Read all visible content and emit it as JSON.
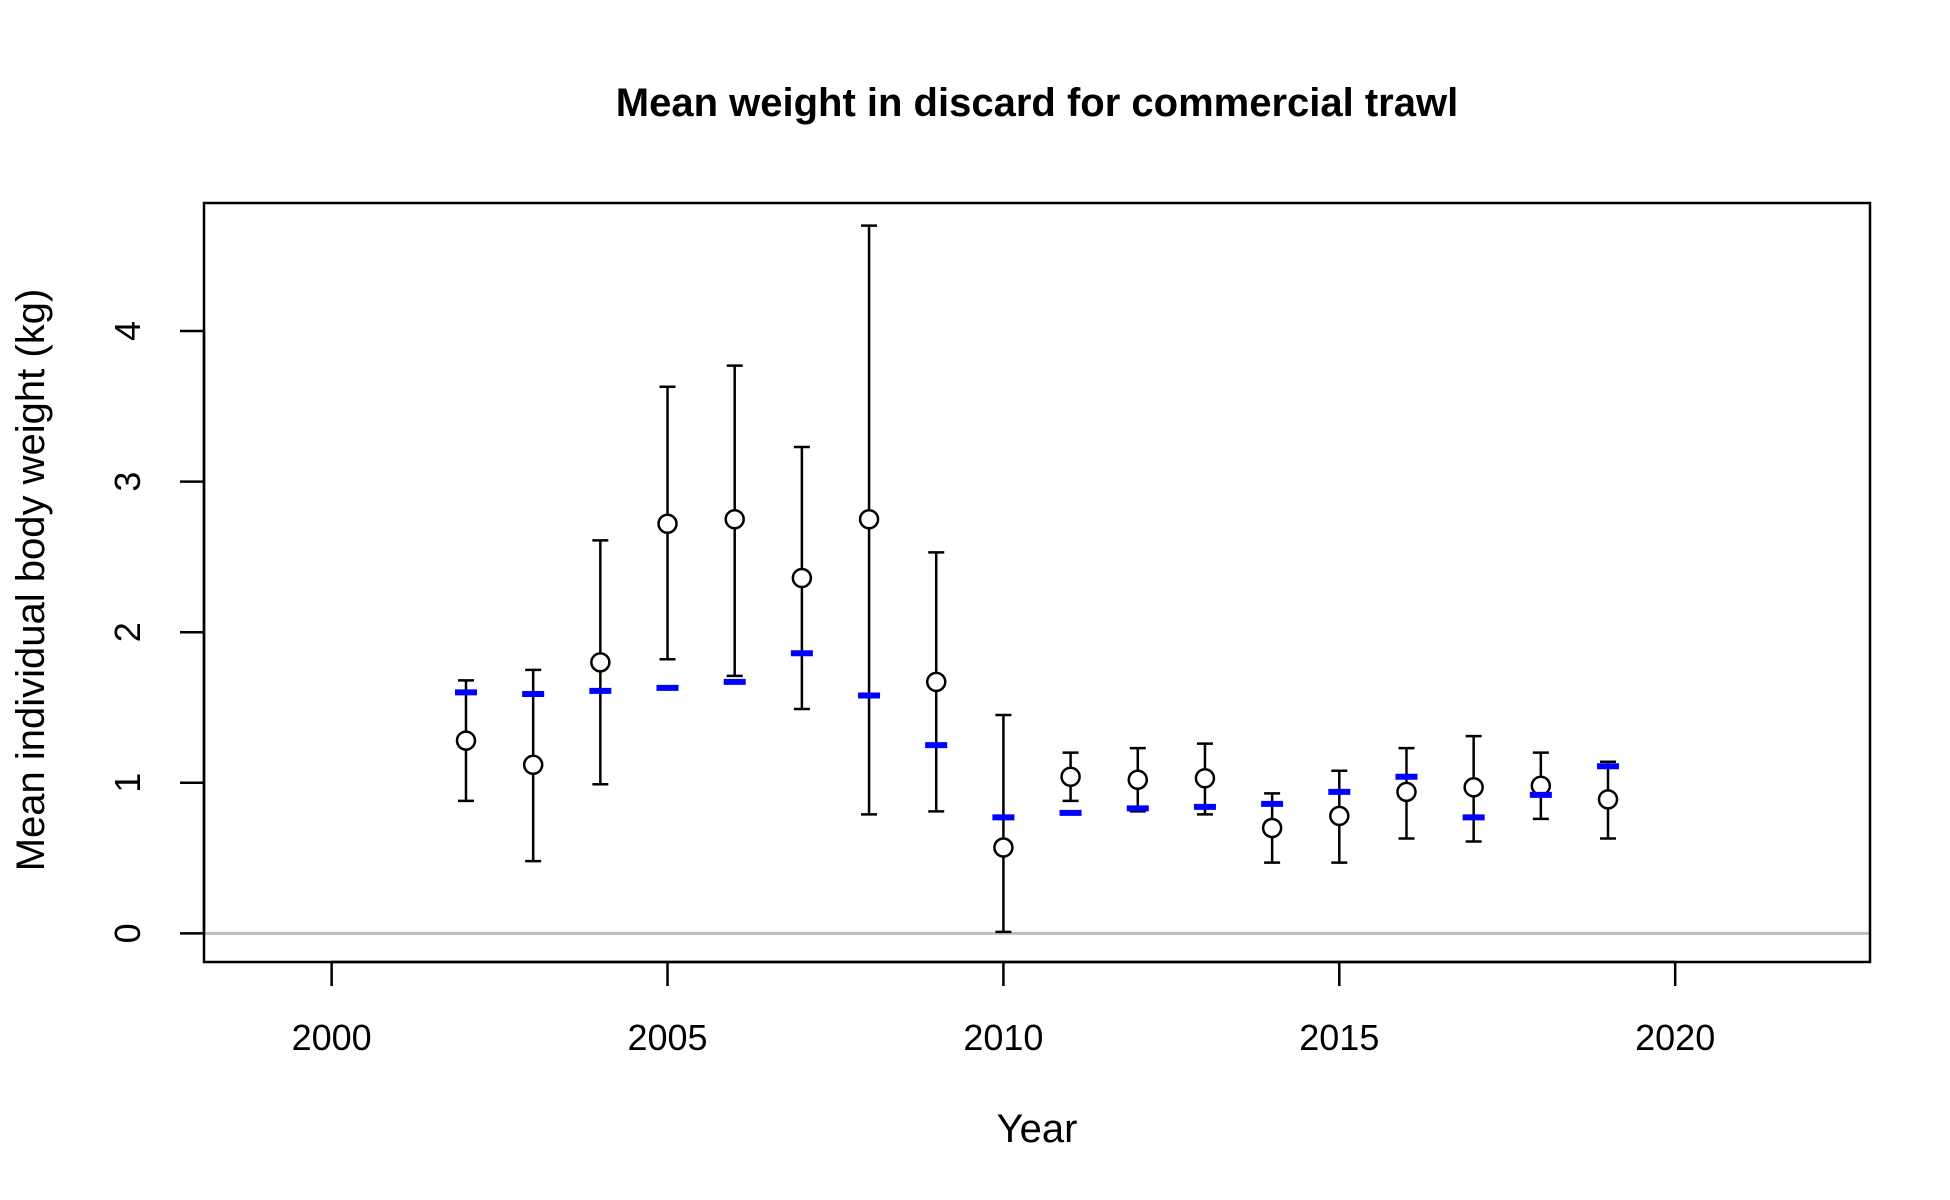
{
  "chart_data": {
    "type": "scatter",
    "title": "Mean weight in discard for commercial trawl",
    "xlabel": "Year",
    "ylabel": "Mean individual body weight (kg)",
    "xlim": [
      1998.1,
      2022.9
    ],
    "ylim": [
      -0.19,
      4.85
    ],
    "xticks": [
      "2000",
      "2005",
      "2010",
      "2015",
      "2020"
    ],
    "yticks": [
      "0",
      "1",
      "2",
      "3",
      "4"
    ],
    "reference_line_y": 0,
    "reference_line_color": "#bebebe",
    "series": [
      {
        "marker": "open-circle",
        "color": "#000000",
        "points": [
          {
            "year": 2002,
            "mean": 1.28,
            "lower": 0.88,
            "upper": 1.68
          },
          {
            "year": 2003,
            "mean": 1.12,
            "lower": 0.48,
            "upper": 1.75
          },
          {
            "year": 2004,
            "mean": 1.8,
            "lower": 0.99,
            "upper": 2.61
          },
          {
            "year": 2005,
            "mean": 2.72,
            "lower": 1.82,
            "upper": 3.63
          },
          {
            "year": 2006,
            "mean": 2.75,
            "lower": 1.71,
            "upper": 3.77
          },
          {
            "year": 2007,
            "mean": 2.36,
            "lower": 1.49,
            "upper": 3.23
          },
          {
            "year": 2008,
            "mean": 2.75,
            "lower": 0.79,
            "upper": 4.7
          },
          {
            "year": 2009,
            "mean": 1.67,
            "lower": 0.81,
            "upper": 2.53
          },
          {
            "year": 2010,
            "mean": 0.57,
            "lower": 0.01,
            "upper": 1.45
          },
          {
            "year": 2011,
            "mean": 1.04,
            "lower": 0.88,
            "upper": 1.2
          },
          {
            "year": 2012,
            "mean": 1.02,
            "lower": 0.81,
            "upper": 1.23
          },
          {
            "year": 2013,
            "mean": 1.03,
            "lower": 0.79,
            "upper": 1.26
          },
          {
            "year": 2014,
            "mean": 0.7,
            "lower": 0.47,
            "upper": 0.93
          },
          {
            "year": 2015,
            "mean": 0.78,
            "lower": 0.47,
            "upper": 1.08
          },
          {
            "year": 2016,
            "mean": 0.94,
            "lower": 0.63,
            "upper": 1.23
          },
          {
            "year": 2017,
            "mean": 0.97,
            "lower": 0.61,
            "upper": 1.31
          },
          {
            "year": 2018,
            "mean": 0.98,
            "lower": 0.76,
            "upper": 1.2
          },
          {
            "year": 2019,
            "mean": 0.89,
            "lower": 0.63,
            "upper": 1.14
          }
        ]
      },
      {
        "marker": "horizontal-dash",
        "color": "#0000ff",
        "points": [
          {
            "year": 2002,
            "value": 1.6
          },
          {
            "year": 2003,
            "value": 1.59
          },
          {
            "year": 2004,
            "value": 1.61
          },
          {
            "year": 2005,
            "value": 1.63
          },
          {
            "year": 2006,
            "value": 1.67
          },
          {
            "year": 2007,
            "value": 1.86
          },
          {
            "year": 2008,
            "value": 1.58
          },
          {
            "year": 2009,
            "value": 1.25
          },
          {
            "year": 2010,
            "value": 0.77
          },
          {
            "year": 2011,
            "value": 0.8
          },
          {
            "year": 2012,
            "value": 0.83
          },
          {
            "year": 2013,
            "value": 0.84
          },
          {
            "year": 2014,
            "value": 0.86
          },
          {
            "year": 2015,
            "value": 0.94
          },
          {
            "year": 2016,
            "value": 1.04
          },
          {
            "year": 2017,
            "value": 0.77
          },
          {
            "year": 2018,
            "value": 0.92
          },
          {
            "year": 2019,
            "value": 1.11
          }
        ]
      }
    ]
  }
}
